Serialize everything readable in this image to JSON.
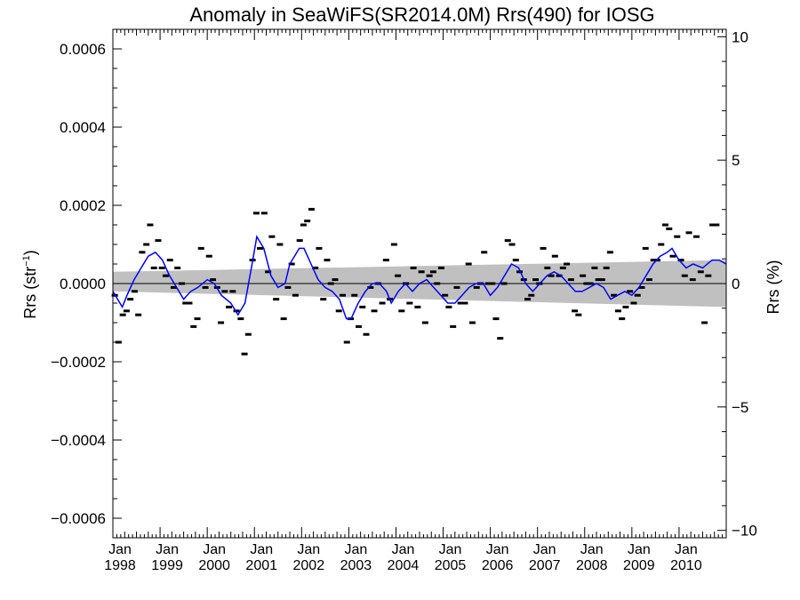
{
  "chart_data": {
    "type": "scatter",
    "title": "Anomaly in SeaWiFS(SR2014.0M) Rrs(490) for IOSG",
    "ylabel_left_base": "Rrs (str",
    "ylabel_left_sup": "−1",
    "ylabel_left_end": ")",
    "ylabel_right": "Rrs (%)",
    "xlim": [
      1998.0,
      2011.0
    ],
    "ylim": [
      -0.00065,
      0.00065
    ],
    "ylim_right": [
      -10.3,
      10.3
    ],
    "left_ticks": [
      {
        "value": 0.0006,
        "label": "0.0006"
      },
      {
        "value": 0.0004,
        "label": "0.0004"
      },
      {
        "value": 0.0002,
        "label": "0.0002"
      },
      {
        "value": 0.0,
        "label": "0.0000"
      },
      {
        "value": -0.0002,
        "label": "−0.0002"
      },
      {
        "value": -0.0004,
        "label": "−0.0004"
      },
      {
        "value": -0.0006,
        "label": "−0.0006"
      }
    ],
    "right_ticks": [
      {
        "value": 10,
        "label": "10"
      },
      {
        "value": 5,
        "label": "5"
      },
      {
        "value": 0,
        "label": "0"
      },
      {
        "value": -5,
        "label": "−5"
      },
      {
        "value": -10,
        "label": "−10"
      }
    ],
    "x_ticks": [
      {
        "value": 1998,
        "month": "Jan",
        "year": "1998"
      },
      {
        "value": 1999,
        "month": "Jan",
        "year": "1999"
      },
      {
        "value": 2000,
        "month": "Jan",
        "year": "2000"
      },
      {
        "value": 2001,
        "month": "Jan",
        "year": "2001"
      },
      {
        "value": 2002,
        "month": "Jan",
        "year": "2002"
      },
      {
        "value": 2003,
        "month": "Jan",
        "year": "2003"
      },
      {
        "value": 2004,
        "month": "Jan",
        "year": "2004"
      },
      {
        "value": 2005,
        "month": "Jan",
        "year": "2005"
      },
      {
        "value": 2006,
        "month": "Jan",
        "year": "2006"
      },
      {
        "value": 2007,
        "month": "Jan",
        "year": "2007"
      },
      {
        "value": 2008,
        "month": "Jan",
        "year": "2008"
      },
      {
        "value": 2009,
        "month": "Jan",
        "year": "2009"
      },
      {
        "value": 2010,
        "month": "Jan",
        "year": "2010"
      }
    ],
    "monthly_points": [
      [
        1998.04,
        -3e-05
      ],
      [
        1998.12,
        -0.00015
      ],
      [
        1998.21,
        -8e-05
      ],
      [
        1998.29,
        -7e-05
      ],
      [
        1998.37,
        -4e-05
      ],
      [
        1998.46,
        -2e-05
      ],
      [
        1998.54,
        -8e-05
      ],
      [
        1998.62,
        8e-05
      ],
      [
        1998.71,
        0.0001
      ],
      [
        1998.79,
        0.00015
      ],
      [
        1998.87,
        4e-05
      ],
      [
        1998.96,
        0.00011
      ],
      [
        1999.04,
        4e-05
      ],
      [
        1999.12,
        2e-05
      ],
      [
        1999.21,
        6e-05
      ],
      [
        1999.29,
        -1e-05
      ],
      [
        1999.37,
        4e-05
      ],
      [
        1999.46,
        0.0
      ],
      [
        1999.54,
        -5e-05
      ],
      [
        1999.62,
        -5e-05
      ],
      [
        1999.71,
        -0.00011
      ],
      [
        1999.79,
        -9e-05
      ],
      [
        1999.87,
        9e-05
      ],
      [
        1999.96,
        -1e-05
      ],
      [
        2000.04,
        7e-05
      ],
      [
        2000.12,
        1e-05
      ],
      [
        2000.21,
        -1e-05
      ],
      [
        2000.29,
        -0.0001
      ],
      [
        2000.37,
        -2e-05
      ],
      [
        2000.46,
        -6e-05
      ],
      [
        2000.54,
        -2e-05
      ],
      [
        2000.62,
        -7e-05
      ],
      [
        2000.71,
        -9e-05
      ],
      [
        2000.79,
        -0.00018
      ],
      [
        2000.87,
        -0.00013
      ],
      [
        2000.96,
        6e-05
      ],
      [
        2001.04,
        0.00018
      ],
      [
        2001.12,
        9e-05
      ],
      [
        2001.21,
        0.00018
      ],
      [
        2001.29,
        3e-05
      ],
      [
        2001.37,
        0.00012
      ],
      [
        2001.46,
        -4e-05
      ],
      [
        2001.54,
        0.0001
      ],
      [
        2001.62,
        -9e-05
      ],
      [
        2001.71,
        -1e-05
      ],
      [
        2001.79,
        5e-05
      ],
      [
        2001.87,
        -3e-05
      ],
      [
        2001.96,
        0.00011
      ],
      [
        2002.04,
        0.00015
      ],
      [
        2002.12,
        0.00016
      ],
      [
        2002.21,
        0.00019
      ],
      [
        2002.29,
        4e-05
      ],
      [
        2002.37,
        9e-05
      ],
      [
        2002.46,
        -4e-05
      ],
      [
        2002.54,
        6e-05
      ],
      [
        2002.62,
        -0.0
      ],
      [
        2002.71,
        1e-05
      ],
      [
        2002.79,
        -7e-05
      ],
      [
        2002.87,
        -3e-05
      ],
      [
        2002.96,
        -0.00015
      ],
      [
        2003.04,
        -9e-05
      ],
      [
        2003.12,
        -3e-05
      ],
      [
        2003.21,
        -0.00011
      ],
      [
        2003.29,
        -6e-05
      ],
      [
        2003.37,
        -0.00013
      ],
      [
        2003.46,
        -1e-05
      ],
      [
        2003.54,
        -7e-05
      ],
      [
        2003.62,
        -0.0
      ],
      [
        2003.71,
        -5e-05
      ],
      [
        2003.79,
        6e-05
      ],
      [
        2003.87,
        -4e-05
      ],
      [
        2003.96,
        0.0001
      ],
      [
        2004.04,
        2e-05
      ],
      [
        2004.12,
        -7e-05
      ],
      [
        2004.21,
        0.0
      ],
      [
        2004.29,
        -5e-05
      ],
      [
        2004.37,
        4e-05
      ],
      [
        2004.46,
        -6e-05
      ],
      [
        2004.54,
        3e-05
      ],
      [
        2004.62,
        -0.0001
      ],
      [
        2004.71,
        2e-05
      ],
      [
        2004.79,
        3e-05
      ],
      [
        2004.87,
        0.0
      ],
      [
        2004.96,
        4e-05
      ],
      [
        2005.04,
        -3e-05
      ],
      [
        2005.12,
        -6e-05
      ],
      [
        2005.21,
        -0.00011
      ],
      [
        2005.29,
        -1e-05
      ],
      [
        2005.37,
        -5e-05
      ],
      [
        2005.46,
        -5e-05
      ],
      [
        2005.54,
        5e-05
      ],
      [
        2005.62,
        -0.0001
      ],
      [
        2005.71,
        -1e-05
      ],
      [
        2005.79,
        0.0
      ],
      [
        2005.87,
        8e-05
      ],
      [
        2005.96,
        0.0
      ],
      [
        2006.04,
        -0.0
      ],
      [
        2006.12,
        -9e-05
      ],
      [
        2006.21,
        -0.00014
      ],
      [
        2006.29,
        0.0
      ],
      [
        2006.37,
        0.00011
      ],
      [
        2006.46,
        0.0001
      ],
      [
        2006.54,
        6e-05
      ],
      [
        2006.62,
        3e-05
      ],
      [
        2006.71,
        1e-05
      ],
      [
        2006.79,
        -4e-05
      ],
      [
        2006.87,
        -3e-05
      ],
      [
        2006.96,
        1e-05
      ],
      [
        2007.04,
        0.0
      ],
      [
        2007.12,
        9e-05
      ],
      [
        2007.21,
        4e-05
      ],
      [
        2007.29,
        2e-05
      ],
      [
        2007.37,
        7e-05
      ],
      [
        2007.46,
        2e-05
      ],
      [
        2007.54,
        4e-05
      ],
      [
        2007.62,
        5e-05
      ],
      [
        2007.71,
        1e-05
      ],
      [
        2007.79,
        -7e-05
      ],
      [
        2007.87,
        -8e-05
      ],
      [
        2007.96,
        2e-05
      ],
      [
        2008.04,
        0.0
      ],
      [
        2008.12,
        -0.0
      ],
      [
        2008.21,
        4e-05
      ],
      [
        2008.29,
        1e-05
      ],
      [
        2008.37,
        1e-05
      ],
      [
        2008.46,
        4e-05
      ],
      [
        2008.54,
        8e-05
      ],
      [
        2008.62,
        -3e-05
      ],
      [
        2008.71,
        -7e-05
      ],
      [
        2008.79,
        -9e-05
      ],
      [
        2008.87,
        -6e-05
      ],
      [
        2008.96,
        -2e-05
      ],
      [
        2009.04,
        -5e-05
      ],
      [
        2009.12,
        -3e-05
      ],
      [
        2009.21,
        -1e-05
      ],
      [
        2009.29,
        9e-05
      ],
      [
        2009.37,
        1e-05
      ],
      [
        2009.46,
        6e-05
      ],
      [
        2009.54,
        6e-05
      ],
      [
        2009.62,
        0.0001
      ],
      [
        2009.71,
        0.00015
      ],
      [
        2009.79,
        0.00014
      ],
      [
        2009.87,
        7e-05
      ],
      [
        2009.96,
        0.00012
      ],
      [
        2010.04,
        6e-05
      ],
      [
        2010.12,
        2e-05
      ],
      [
        2010.21,
        0.00013
      ],
      [
        2010.29,
        1e-05
      ],
      [
        2010.37,
        0.00012
      ],
      [
        2010.46,
        3e-05
      ],
      [
        2010.54,
        -0.0001
      ],
      [
        2010.62,
        2e-05
      ],
      [
        2010.71,
        0.00015
      ],
      [
        2010.79,
        0.00015
      ]
    ],
    "smoothed_line": [
      [
        1998.0,
        -2e-05
      ],
      [
        1998.1,
        -4e-05
      ],
      [
        1998.2,
        -6e-05
      ],
      [
        1998.3,
        -3e-05
      ],
      [
        1998.45,
        1e-05
      ],
      [
        1998.6,
        4e-05
      ],
      [
        1998.75,
        7e-05
      ],
      [
        1998.9,
        8e-05
      ],
      [
        1999.05,
        6e-05
      ],
      [
        1999.2,
        2e-05
      ],
      [
        1999.35,
        -1e-05
      ],
      [
        1999.5,
        -4e-05
      ],
      [
        1999.65,
        -2e-05
      ],
      [
        1999.8,
        -1e-05
      ],
      [
        2000.0,
        1e-05
      ],
      [
        2000.15,
        0.0
      ],
      [
        2000.3,
        -3e-05
      ],
      [
        2000.5,
        -5e-05
      ],
      [
        2000.65,
        -8e-05
      ],
      [
        2000.8,
        -5e-05
      ],
      [
        2000.95,
        5e-05
      ],
      [
        2001.05,
        0.00012
      ],
      [
        2001.2,
        9e-05
      ],
      [
        2001.35,
        2e-05
      ],
      [
        2001.5,
        -1e-05
      ],
      [
        2001.65,
        -0.0
      ],
      [
        2001.75,
        5e-05
      ],
      [
        2001.95,
        9e-05
      ],
      [
        2002.05,
        9e-05
      ],
      [
        2002.2,
        5e-05
      ],
      [
        2002.35,
        1e-05
      ],
      [
        2002.5,
        -1e-05
      ],
      [
        2002.65,
        -2e-05
      ],
      [
        2002.8,
        -4e-05
      ],
      [
        2002.95,
        -9e-05
      ],
      [
        2003.05,
        -9e-05
      ],
      [
        2003.2,
        -5e-05
      ],
      [
        2003.35,
        -2e-05
      ],
      [
        2003.5,
        -0.0
      ],
      [
        2003.65,
        0.0
      ],
      [
        2003.8,
        -2e-05
      ],
      [
        2003.9,
        -5e-05
      ],
      [
        2004.05,
        -2e-05
      ],
      [
        2004.2,
        0.0
      ],
      [
        2004.35,
        -2e-05
      ],
      [
        2004.5,
        -0.0
      ],
      [
        2004.65,
        1e-05
      ],
      [
        2004.8,
        -1e-05
      ],
      [
        2004.95,
        -3e-05
      ],
      [
        2005.1,
        -5e-05
      ],
      [
        2005.25,
        -5e-05
      ],
      [
        2005.4,
        -3e-05
      ],
      [
        2005.55,
        -1e-05
      ],
      [
        2005.7,
        0.0
      ],
      [
        2005.85,
        -0.0
      ],
      [
        2006.0,
        -3e-05
      ],
      [
        2006.15,
        -1e-05
      ],
      [
        2006.3,
        2e-05
      ],
      [
        2006.45,
        5e-05
      ],
      [
        2006.6,
        4e-05
      ],
      [
        2006.75,
        0.0
      ],
      [
        2006.9,
        -2e-05
      ],
      [
        2007.05,
        0.0
      ],
      [
        2007.2,
        2e-05
      ],
      [
        2007.35,
        3e-05
      ],
      [
        2007.5,
        2e-05
      ],
      [
        2007.65,
        0.0
      ],
      [
        2007.8,
        -2e-05
      ],
      [
        2007.95,
        -2e-05
      ],
      [
        2008.1,
        -1e-05
      ],
      [
        2008.25,
        0.0
      ],
      [
        2008.4,
        -1e-05
      ],
      [
        2008.55,
        -4e-05
      ],
      [
        2008.7,
        -3e-05
      ],
      [
        2008.85,
        -2e-05
      ],
      [
        2009.0,
        -3e-05
      ],
      [
        2009.15,
        -1e-05
      ],
      [
        2009.3,
        2e-05
      ],
      [
        2009.45,
        5e-05
      ],
      [
        2009.6,
        7e-05
      ],
      [
        2009.75,
        8e-05
      ],
      [
        2009.85,
        9e-05
      ],
      [
        2010.0,
        6e-05
      ],
      [
        2010.15,
        4e-05
      ],
      [
        2010.3,
        5e-05
      ],
      [
        2010.5,
        4e-05
      ],
      [
        2010.7,
        6e-05
      ],
      [
        2010.85,
        6e-05
      ],
      [
        2011.0,
        5e-05
      ]
    ],
    "uncertainty_band": {
      "x": [
        1998.0,
        2011.0
      ],
      "upper": [
        3e-05,
        6e-05
      ],
      "lower": [
        -2e-05,
        -6e-05
      ]
    },
    "zero_line": 0,
    "colors": {
      "line": "#0000ff",
      "band": "#c0c0c0",
      "points": "#000000",
      "axes": "#000000"
    },
    "grid": false
  }
}
